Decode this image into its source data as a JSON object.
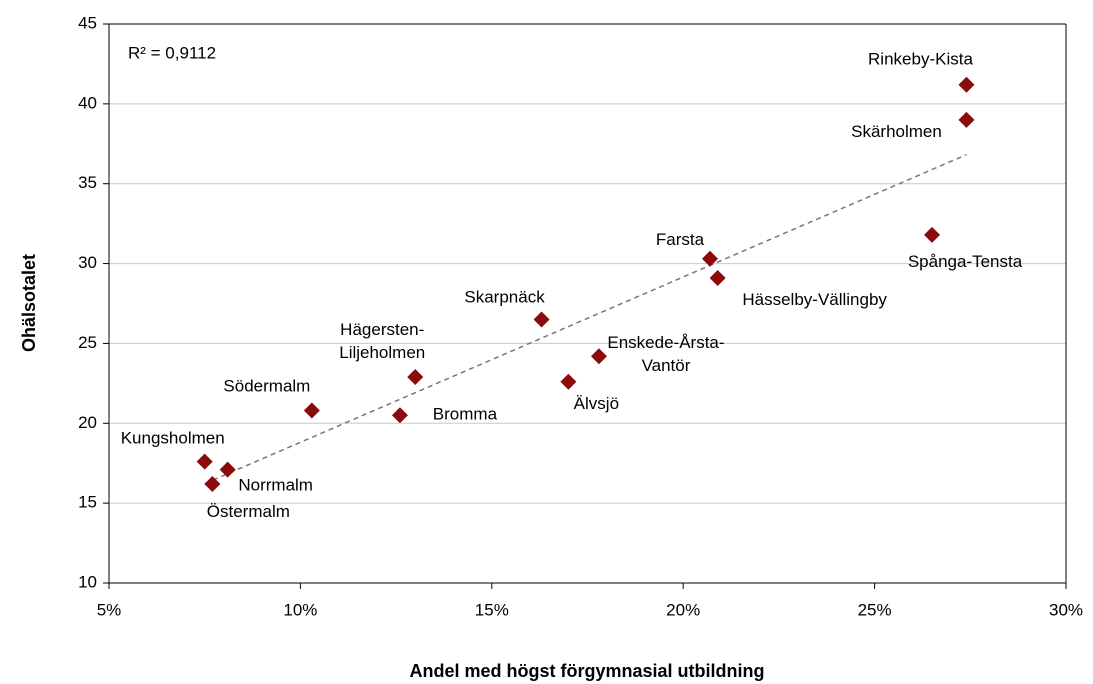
{
  "chart_data": {
    "type": "scatter",
    "x_label": "Andel med högst förgymnasial utbildning",
    "y_label": "Ohälsotalet",
    "annotation": "R² = 0,9112",
    "color": "#8b0a0a",
    "trendline": true,
    "grid": true,
    "labels": [
      [
        "Rinkeby-Kista"
      ],
      [
        "Skärholmen"
      ],
      [
        "Spånga-Tensta"
      ],
      [
        "Farsta"
      ],
      [
        "Hässelby-Vällingby"
      ],
      [
        "Skarpnäck"
      ],
      [
        "Enskede-Årsta-",
        "Vantör"
      ],
      [
        "Älvsjö"
      ],
      [
        "Hägersten-",
        "Liljeholmen"
      ],
      [
        "Bromma"
      ],
      [
        "Södermalm"
      ],
      [
        "Kungsholmen"
      ],
      [
        "Norrmalm"
      ],
      [
        "Östermalm"
      ]
    ],
    "x": [
      27.4,
      27.4,
      26.5,
      20.7,
      20.9,
      16.3,
      17.8,
      17.0,
      13.0,
      12.6,
      10.3,
      7.5,
      8.1,
      7.7
    ],
    "y": [
      41.2,
      39.0,
      31.8,
      30.3,
      29.1,
      26.5,
      24.2,
      22.6,
      22.9,
      20.5,
      20.8,
      17.6,
      17.1,
      16.2
    ],
    "xlim": [
      5,
      30
    ],
    "xticks": [
      {
        "value": 5,
        "label": "5%"
      },
      {
        "value": 10,
        "label": "10%"
      },
      {
        "value": 15,
        "label": "15%"
      },
      {
        "value": 20,
        "label": "20%"
      },
      {
        "value": 25,
        "label": "25%"
      },
      {
        "value": 30,
        "label": "30%"
      }
    ],
    "ylim": [
      10,
      45
    ],
    "yticks": [
      10,
      15,
      20,
      25,
      30,
      35,
      40,
      45
    ]
  }
}
